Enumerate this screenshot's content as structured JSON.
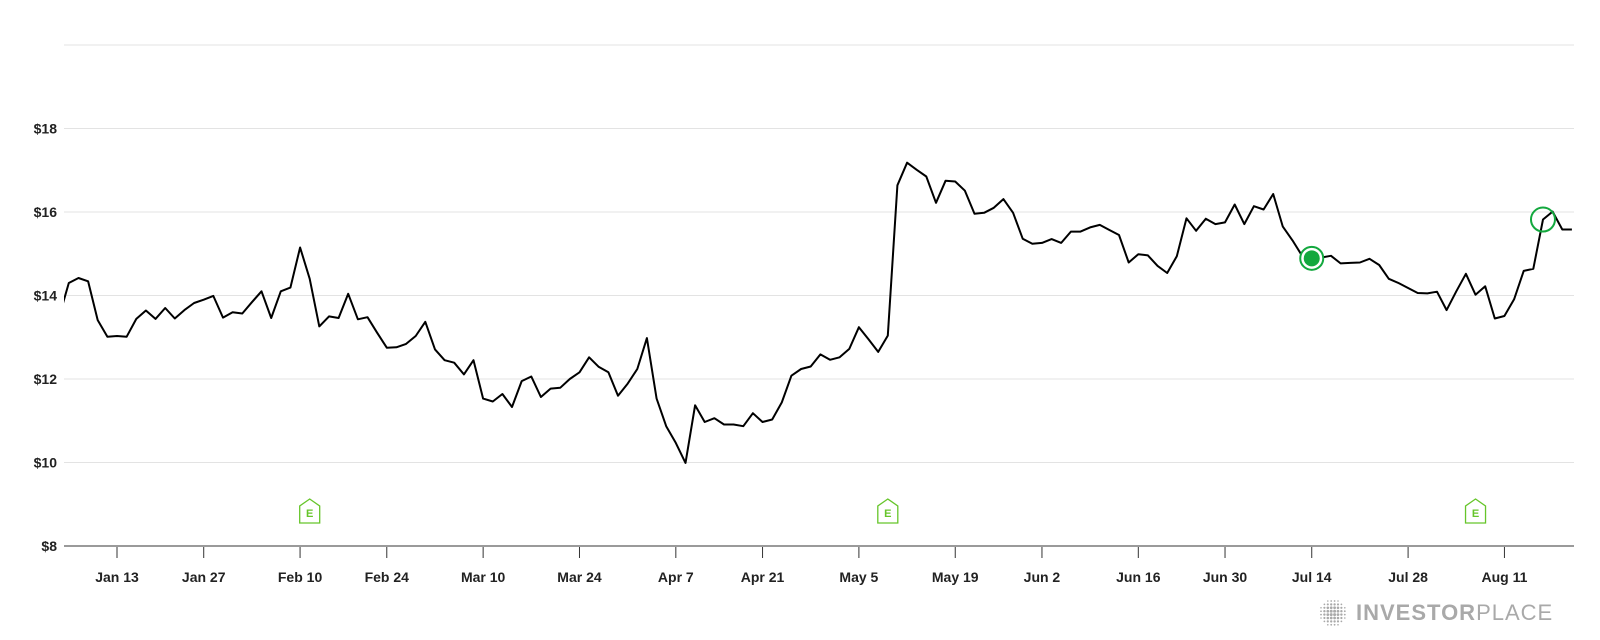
{
  "chart_data": {
    "type": "line",
    "title": "",
    "xlabel": "",
    "ylabel": "",
    "ylim": [
      8,
      20
    ],
    "y_ticks": [
      {
        "value": 20,
        "label": ""
      },
      {
        "value": 18,
        "label": "$18"
      },
      {
        "value": 16,
        "label": "$16"
      },
      {
        "value": 14,
        "label": "$14"
      },
      {
        "value": 12,
        "label": "$12"
      },
      {
        "value": 10,
        "label": "$10"
      },
      {
        "value": 8,
        "label": "$8"
      }
    ],
    "x_ticks": [
      {
        "date": "2025-01-13",
        "label": "Jan 13"
      },
      {
        "date": "2025-01-27",
        "label": "Jan 27"
      },
      {
        "date": "2025-02-10",
        "label": "Feb 10"
      },
      {
        "date": "2025-02-24",
        "label": "Feb 24"
      },
      {
        "date": "2025-03-10",
        "label": "Mar 10"
      },
      {
        "date": "2025-03-24",
        "label": "Mar 24"
      },
      {
        "date": "2025-04-07",
        "label": "Apr 7"
      },
      {
        "date": "2025-04-21",
        "label": "Apr 21"
      },
      {
        "date": "2025-05-05",
        "label": "May 5"
      },
      {
        "date": "2025-05-19",
        "label": "May 19"
      },
      {
        "date": "2025-06-02",
        "label": "Jun 2"
      },
      {
        "date": "2025-06-16",
        "label": "Jun 16"
      },
      {
        "date": "2025-06-30",
        "label": "Jun 30"
      },
      {
        "date": "2025-07-14",
        "label": "Jul 14"
      },
      {
        "date": "2025-07-28",
        "label": "Jul 28"
      },
      {
        "date": "2025-08-11",
        "label": "Aug 11"
      }
    ],
    "grid": "horizontal",
    "line_color": "#000000",
    "series": [
      {
        "points": [
          [
            "2025-01-03",
            13.5
          ],
          [
            "2025-01-06",
            14.3
          ],
          [
            "2025-01-07",
            14.42
          ],
          [
            "2025-01-08",
            14.34
          ],
          [
            "2025-01-09",
            13.41
          ],
          [
            "2025-01-10",
            13.01
          ],
          [
            "2025-01-13",
            13.03
          ],
          [
            "2025-01-14",
            13.01
          ],
          [
            "2025-01-15",
            13.44
          ],
          [
            "2025-01-16",
            13.64
          ],
          [
            "2025-01-17",
            13.44
          ],
          [
            "2025-01-21",
            13.7
          ],
          [
            "2025-01-22",
            13.45
          ],
          [
            "2025-01-23",
            13.65
          ],
          [
            "2025-01-24",
            13.82
          ],
          [
            "2025-01-27",
            13.9
          ],
          [
            "2025-01-28",
            13.99
          ],
          [
            "2025-01-29",
            13.47
          ],
          [
            "2025-01-30",
            13.6
          ],
          [
            "2025-01-31",
            13.57
          ],
          [
            "2025-02-03",
            13.84
          ],
          [
            "2025-02-04",
            14.1
          ],
          [
            "2025-02-05",
            13.46
          ],
          [
            "2025-02-06",
            14.1
          ],
          [
            "2025-02-07",
            14.19
          ],
          [
            "2025-02-10",
            15.15
          ],
          [
            "2025-02-11",
            14.4
          ],
          [
            "2025-02-12",
            13.26
          ],
          [
            "2025-02-13",
            13.5
          ],
          [
            "2025-02-14",
            13.46
          ],
          [
            "2025-02-18",
            14.04
          ],
          [
            "2025-02-19",
            13.43
          ],
          [
            "2025-02-20",
            13.48
          ],
          [
            "2025-02-21",
            13.11
          ],
          [
            "2025-02-24",
            12.75
          ],
          [
            "2025-02-25",
            12.76
          ],
          [
            "2025-02-26",
            12.84
          ],
          [
            "2025-02-27",
            13.03
          ],
          [
            "2025-02-28",
            13.37
          ],
          [
            "2025-03-03",
            12.71
          ],
          [
            "2025-03-04",
            12.45
          ],
          [
            "2025-03-05",
            12.39
          ],
          [
            "2025-03-06",
            12.11
          ],
          [
            "2025-03-07",
            12.45
          ],
          [
            "2025-03-10",
            11.53
          ],
          [
            "2025-03-11",
            11.46
          ],
          [
            "2025-03-12",
            11.64
          ],
          [
            "2025-03-13",
            11.33
          ],
          [
            "2025-03-14",
            11.95
          ],
          [
            "2025-03-17",
            12.06
          ],
          [
            "2025-03-18",
            11.57
          ],
          [
            "2025-03-19",
            11.77
          ],
          [
            "2025-03-20",
            11.79
          ],
          [
            "2025-03-21",
            12.0
          ],
          [
            "2025-03-24",
            12.16
          ],
          [
            "2025-03-25",
            12.52
          ],
          [
            "2025-03-26",
            12.29
          ],
          [
            "2025-03-27",
            12.16
          ],
          [
            "2025-03-28",
            11.6
          ],
          [
            "2025-03-31",
            11.89
          ],
          [
            "2025-04-01",
            12.24
          ],
          [
            "2025-04-02",
            12.98
          ],
          [
            "2025-04-03",
            11.53
          ],
          [
            "2025-04-04",
            10.87
          ],
          [
            "2025-04-07",
            10.47
          ],
          [
            "2025-04-08",
            9.99
          ],
          [
            "2025-04-09",
            11.37
          ],
          [
            "2025-04-10",
            10.97
          ],
          [
            "2025-04-11",
            11.06
          ],
          [
            "2025-04-14",
            10.91
          ],
          [
            "2025-04-15",
            10.91
          ],
          [
            "2025-04-16",
            10.87
          ],
          [
            "2025-04-17",
            11.18
          ],
          [
            "2025-04-21",
            10.97
          ],
          [
            "2025-04-22",
            11.03
          ],
          [
            "2025-04-23",
            11.44
          ],
          [
            "2025-04-24",
            12.08
          ],
          [
            "2025-04-25",
            12.24
          ],
          [
            "2025-04-28",
            12.3
          ],
          [
            "2025-04-29",
            12.59
          ],
          [
            "2025-04-30",
            12.46
          ],
          [
            "2025-05-01",
            12.52
          ],
          [
            "2025-05-02",
            12.72
          ],
          [
            "2025-05-05",
            13.24
          ],
          [
            "2025-05-06",
            12.95
          ],
          [
            "2025-05-07",
            12.65
          ],
          [
            "2025-05-08",
            13.04
          ],
          [
            "2025-05-09",
            16.64
          ],
          [
            "2025-05-12",
            17.18
          ],
          [
            "2025-05-13",
            17.01
          ],
          [
            "2025-05-14",
            16.85
          ],
          [
            "2025-05-15",
            16.22
          ],
          [
            "2025-05-16",
            16.75
          ],
          [
            "2025-05-19",
            16.73
          ],
          [
            "2025-05-20",
            16.51
          ],
          [
            "2025-05-21",
            15.96
          ],
          [
            "2025-05-22",
            15.98
          ],
          [
            "2025-05-23",
            16.1
          ],
          [
            "2025-05-27",
            16.31
          ],
          [
            "2025-05-28",
            15.98
          ],
          [
            "2025-05-29",
            15.36
          ],
          [
            "2025-05-30",
            15.24
          ],
          [
            "2025-06-02",
            15.26
          ],
          [
            "2025-06-03",
            15.35
          ],
          [
            "2025-06-04",
            15.26
          ],
          [
            "2025-06-05",
            15.53
          ],
          [
            "2025-06-06",
            15.53
          ],
          [
            "2025-06-09",
            15.63
          ],
          [
            "2025-06-10",
            15.69
          ],
          [
            "2025-06-11",
            15.57
          ],
          [
            "2025-06-12",
            15.45
          ],
          [
            "2025-06-13",
            14.79
          ],
          [
            "2025-06-16",
            14.99
          ],
          [
            "2025-06-17",
            14.96
          ],
          [
            "2025-06-18",
            14.71
          ],
          [
            "2025-06-20",
            14.54
          ],
          [
            "2025-06-23",
            14.94
          ],
          [
            "2025-06-24",
            15.85
          ],
          [
            "2025-06-25",
            15.55
          ],
          [
            "2025-06-26",
            15.84
          ],
          [
            "2025-06-27",
            15.71
          ],
          [
            "2025-06-30",
            15.75
          ],
          [
            "2025-07-01",
            16.18
          ],
          [
            "2025-07-02",
            15.71
          ],
          [
            "2025-07-03",
            16.14
          ],
          [
            "2025-07-07",
            16.06
          ],
          [
            "2025-07-08",
            16.43
          ],
          [
            "2025-07-09",
            15.65
          ],
          [
            "2025-07-10",
            15.32
          ],
          [
            "2025-07-11",
            14.95
          ],
          [
            "2025-07-14",
            14.89
          ],
          [
            "2025-07-15",
            14.91
          ],
          [
            "2025-07-16",
            14.95
          ],
          [
            "2025-07-17",
            14.77
          ],
          [
            "2025-07-18",
            14.78
          ],
          [
            "2025-07-21",
            14.79
          ],
          [
            "2025-07-22",
            14.88
          ],
          [
            "2025-07-23",
            14.73
          ],
          [
            "2025-07-24",
            14.4
          ],
          [
            "2025-07-25",
            14.3
          ],
          [
            "2025-07-28",
            14.18
          ],
          [
            "2025-07-29",
            14.06
          ],
          [
            "2025-07-30",
            14.05
          ],
          [
            "2025-07-31",
            14.09
          ],
          [
            "2025-08-01",
            13.65
          ],
          [
            "2025-08-04",
            14.1
          ],
          [
            "2025-08-05",
            14.52
          ],
          [
            "2025-08-06",
            14.02
          ],
          [
            "2025-08-07",
            14.22
          ],
          [
            "2025-08-08",
            13.45
          ],
          [
            "2025-08-11",
            13.51
          ],
          [
            "2025-08-12",
            13.91
          ],
          [
            "2025-08-13",
            14.59
          ],
          [
            "2025-08-14",
            14.64
          ],
          [
            "2025-08-15",
            15.82
          ],
          [
            "2025-08-18",
            16.01
          ],
          [
            "2025-08-19",
            15.58
          ],
          [
            "2025-08-20",
            15.58
          ]
        ]
      }
    ],
    "markers": [
      {
        "date": "2025-07-14",
        "value": 14.89,
        "style": "filled",
        "color": "#13a83e"
      },
      {
        "date": "2025-08-15",
        "value": 15.82,
        "style": "hollow",
        "color": "#13a83e"
      }
    ],
    "earnings_events": [
      {
        "date": "2025-02-11",
        "label": "E"
      },
      {
        "date": "2025-05-08",
        "label": "E"
      },
      {
        "date": "2025-08-06",
        "label": "E"
      }
    ],
    "earnings_color": "#66c52a"
  },
  "branding": {
    "logo_bold": "INVESTOR",
    "logo_light": "PLACE",
    "logo_color": "#a9a9a9"
  }
}
